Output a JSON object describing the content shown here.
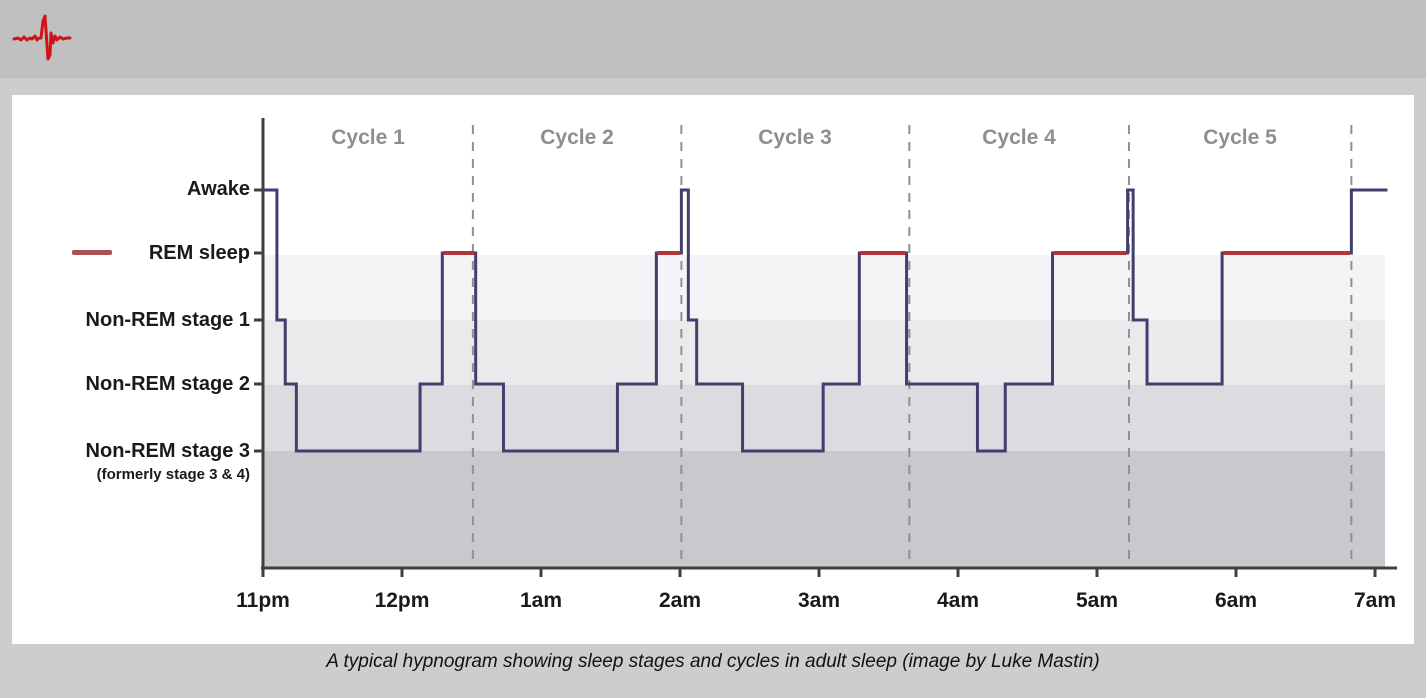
{
  "page": {
    "background": "#cdcdcd",
    "header_background": "#c0c0c0",
    "logo_icon": "heartbeat-ecg-icon",
    "logo_color": "#cf1418",
    "caption": "A typical hypnogram showing sleep stages and cycles in adult sleep (image by Luke Mastin)"
  },
  "chart_data": {
    "type": "line",
    "subtype": "hypnogram-step",
    "x_axis": {
      "tick_labels": [
        "11pm",
        "12pm",
        "1am",
        "2am",
        "3am",
        "4am",
        "5am",
        "6am",
        "7am"
      ],
      "hours_span": 8
    },
    "y_axis": {
      "labels": [
        "Awake",
        "REM sleep",
        "Non-REM stage 1",
        "Non-REM stage 2",
        "Non-REM stage 3"
      ],
      "sub_label": "(formerly stage 3 & 4)"
    },
    "legend": {
      "rem_dash_color": "#a85054"
    },
    "cycles": {
      "labels": [
        "Cycle 1",
        "Cycle 2",
        "Cycle 3",
        "Cycle 4",
        "Cycle 5"
      ],
      "boundaries_hours_after_11pm": [
        1.51,
        3.01,
        4.65,
        6.23,
        7.83
      ]
    },
    "stage_levels": {
      "awake": 0,
      "rem": 1,
      "n1": 2,
      "n2": 3,
      "n3": 4
    },
    "segments_hours": [
      [
        0.0,
        0.1,
        "awake"
      ],
      [
        0.1,
        0.16,
        "n1"
      ],
      [
        0.16,
        0.24,
        "n2"
      ],
      [
        0.24,
        1.13,
        "n3"
      ],
      [
        1.13,
        1.29,
        "n2"
      ],
      [
        1.29,
        1.53,
        "rem"
      ],
      [
        1.53,
        1.73,
        "n2"
      ],
      [
        1.73,
        2.55,
        "n3"
      ],
      [
        2.55,
        2.83,
        "n2"
      ],
      [
        2.83,
        3.01,
        "rem"
      ],
      [
        3.01,
        3.06,
        "awake"
      ],
      [
        3.06,
        3.12,
        "n1"
      ],
      [
        3.12,
        3.45,
        "n2"
      ],
      [
        3.45,
        4.03,
        "n3"
      ],
      [
        4.03,
        4.29,
        "n2"
      ],
      [
        4.29,
        4.63,
        "rem"
      ],
      [
        4.63,
        5.14,
        "n2"
      ],
      [
        5.14,
        5.34,
        "n3"
      ],
      [
        5.34,
        5.68,
        "n2"
      ],
      [
        5.68,
        6.22,
        "rem"
      ],
      [
        6.22,
        6.26,
        "awake"
      ],
      [
        6.26,
        6.36,
        "n1"
      ],
      [
        6.36,
        6.9,
        "n2"
      ],
      [
        6.9,
        7.83,
        "rem"
      ],
      [
        7.83,
        8.09,
        "awake"
      ]
    ],
    "colors": {
      "trace": "#413f6e",
      "rem_segment": "#b23539",
      "bands": [
        "#f4f3f6",
        "#eae9ec",
        "#dcdbdf",
        "#c9c8cc"
      ],
      "dashed_line": "#909090",
      "axis": "#3f3f3f",
      "cycle_label": "#8e8e8e"
    }
  }
}
